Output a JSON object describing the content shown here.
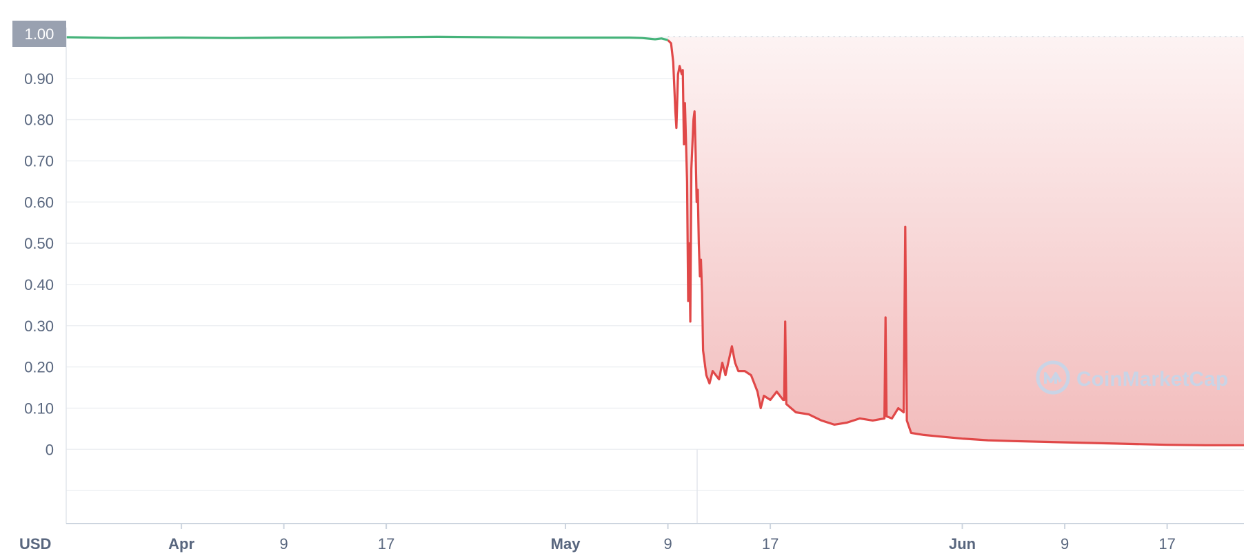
{
  "colors": {
    "up": "#46b37a",
    "down": "#e04848",
    "grid": "#eef0f3",
    "axis_text": "#58667e",
    "badge_bg": "#99a1b0",
    "fill_top": "#fdf3f3",
    "fill_bottom": "#f2bcbc",
    "watermark": "#c9d4e6"
  },
  "axis": {
    "unit_label": "USD",
    "current_price_label": "1.00"
  },
  "watermark": {
    "text": "CoinMarketCap",
    "icon": "coinmarketcap-logo-icon"
  },
  "chart_data": {
    "type": "area",
    "xlabel": "",
    "ylabel": "",
    "y_unit": "USD",
    "ylim": [
      -0.18,
      1.02
    ],
    "xlim": [
      "2022-03-23",
      "2022-06-23"
    ],
    "grid": true,
    "baseline_reference": 1.0,
    "yticks": [
      {
        "value": 1.0,
        "label": "1.00"
      },
      {
        "value": 0.9,
        "label": "0.90"
      },
      {
        "value": 0.8,
        "label": "0.80"
      },
      {
        "value": 0.7,
        "label": "0.70"
      },
      {
        "value": 0.6,
        "label": "0.60"
      },
      {
        "value": 0.5,
        "label": "0.50"
      },
      {
        "value": 0.4,
        "label": "0.40"
      },
      {
        "value": 0.3,
        "label": "0.30"
      },
      {
        "value": 0.2,
        "label": "0.20"
      },
      {
        "value": 0.1,
        "label": "0.10"
      },
      {
        "value": 0.0,
        "label": "0"
      }
    ],
    "xticks": [
      {
        "date": "2022-04-01",
        "label": "Apr",
        "major": true
      },
      {
        "date": "2022-04-09",
        "label": "9",
        "major": false
      },
      {
        "date": "2022-04-17",
        "label": "17",
        "major": false
      },
      {
        "date": "2022-05-01",
        "label": "May",
        "major": true
      },
      {
        "date": "2022-05-09",
        "label": "9",
        "major": false
      },
      {
        "date": "2022-05-17",
        "label": "17",
        "major": false
      },
      {
        "date": "2022-06-01",
        "label": "Jun",
        "major": true
      },
      {
        "date": "2022-06-09",
        "label": "9",
        "major": false
      },
      {
        "date": "2022-06-17",
        "label": "17",
        "major": false
      }
    ],
    "series": [
      {
        "points": [
          [
            "2022-03-23",
            1.0
          ],
          [
            "2022-03-27",
            0.998
          ],
          [
            "2022-04-01",
            0.999
          ],
          [
            "2022-04-05",
            0.998
          ],
          [
            "2022-04-09",
            0.999
          ],
          [
            "2022-04-13",
            0.999
          ],
          [
            "2022-04-17",
            1.0
          ],
          [
            "2022-04-21",
            1.001
          ],
          [
            "2022-04-25",
            1.0
          ],
          [
            "2022-04-29",
            0.999
          ],
          [
            "2022-05-03",
            0.999
          ],
          [
            "2022-05-06",
            0.999
          ],
          [
            "2022-05-07",
            0.998
          ],
          [
            "2022-05-08",
            0.995
          ],
          [
            "2022-05-08T12:00",
            0.997
          ],
          [
            "2022-05-09",
            0.993
          ],
          [
            "2022-05-09T06:00",
            0.985
          ],
          [
            "2022-05-09T10:00",
            0.94
          ],
          [
            "2022-05-09T14:00",
            0.82
          ],
          [
            "2022-05-09T16:00",
            0.78
          ],
          [
            "2022-05-09T19:00",
            0.91
          ],
          [
            "2022-05-09T22:00",
            0.93
          ],
          [
            "2022-05-10T02:00",
            0.91
          ],
          [
            "2022-05-10T04:00",
            0.92
          ],
          [
            "2022-05-10T06:00",
            0.74
          ],
          [
            "2022-05-10T08:00",
            0.84
          ],
          [
            "2022-05-10T12:00",
            0.65
          ],
          [
            "2022-05-10T14:00",
            0.36
          ],
          [
            "2022-05-10T16:00",
            0.5
          ],
          [
            "2022-05-10T18:00",
            0.31
          ],
          [
            "2022-05-10T20:00",
            0.68
          ],
          [
            "2022-05-11T00:00",
            0.8
          ],
          [
            "2022-05-11T02:00",
            0.82
          ],
          [
            "2022-05-11T04:00",
            0.72
          ],
          [
            "2022-05-11T06:00",
            0.6
          ],
          [
            "2022-05-11T08:00",
            0.63
          ],
          [
            "2022-05-11T10:00",
            0.5
          ],
          [
            "2022-05-11T12:00",
            0.42
          ],
          [
            "2022-05-11T14:00",
            0.46
          ],
          [
            "2022-05-11T16:00",
            0.38
          ],
          [
            "2022-05-11T18:00",
            0.24
          ],
          [
            "2022-05-12T00:00",
            0.18
          ],
          [
            "2022-05-12T06:00",
            0.16
          ],
          [
            "2022-05-12T12:00",
            0.19
          ],
          [
            "2022-05-13T00:00",
            0.17
          ],
          [
            "2022-05-13T06:00",
            0.21
          ],
          [
            "2022-05-13T12:00",
            0.18
          ],
          [
            "2022-05-14T00:00",
            0.25
          ],
          [
            "2022-05-14T06:00",
            0.21
          ],
          [
            "2022-05-14T12:00",
            0.19
          ],
          [
            "2022-05-15T00:00",
            0.19
          ],
          [
            "2022-05-15T12:00",
            0.18
          ],
          [
            "2022-05-16T00:00",
            0.14
          ],
          [
            "2022-05-16T06:00",
            0.1
          ],
          [
            "2022-05-16T12:00",
            0.13
          ],
          [
            "2022-05-17T00:00",
            0.12
          ],
          [
            "2022-05-17T12:00",
            0.14
          ],
          [
            "2022-05-18T00:00",
            0.12
          ],
          [
            "2022-05-18T02:00",
            0.12
          ],
          [
            "2022-05-18T04:00",
            0.31
          ],
          [
            "2022-05-18T06:00",
            0.11
          ],
          [
            "2022-05-19T00:00",
            0.09
          ],
          [
            "2022-05-20T00:00",
            0.085
          ],
          [
            "2022-05-21T00:00",
            0.07
          ],
          [
            "2022-05-22T00:00",
            0.06
          ],
          [
            "2022-05-23T00:00",
            0.065
          ],
          [
            "2022-05-24T00:00",
            0.075
          ],
          [
            "2022-05-25T00:00",
            0.07
          ],
          [
            "2022-05-25T22:00",
            0.075
          ],
          [
            "2022-05-26T00:00",
            0.32
          ],
          [
            "2022-05-26T02:00",
            0.08
          ],
          [
            "2022-05-26T12:00",
            0.075
          ],
          [
            "2022-05-27T00:00",
            0.1
          ],
          [
            "2022-05-27T10:00",
            0.09
          ],
          [
            "2022-05-27T13:00",
            0.54
          ],
          [
            "2022-05-27T16:00",
            0.07
          ],
          [
            "2022-05-28T00:00",
            0.04
          ],
          [
            "2022-05-29T00:00",
            0.035
          ],
          [
            "2022-05-30T00:00",
            0.032
          ],
          [
            "2022-06-01T00:00",
            0.026
          ],
          [
            "2022-06-03T00:00",
            0.022
          ],
          [
            "2022-06-05T00:00",
            0.02
          ],
          [
            "2022-06-09T00:00",
            0.017
          ],
          [
            "2022-06-13T00:00",
            0.014
          ],
          [
            "2022-06-17T00:00",
            0.011
          ],
          [
            "2022-06-20T00:00",
            0.01
          ],
          [
            "2022-06-23T00:00",
            0.01
          ]
        ]
      }
    ]
  }
}
